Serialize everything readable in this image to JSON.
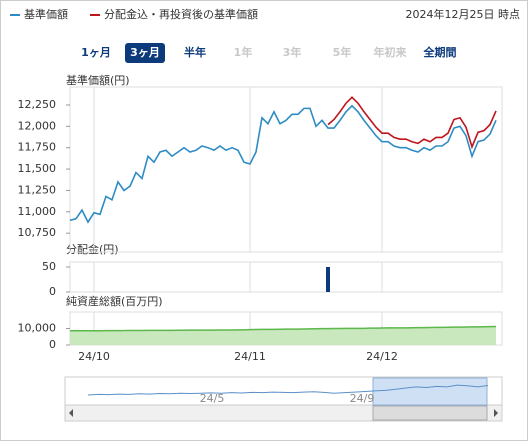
{
  "legend": {
    "items": [
      {
        "label": "基準価額",
        "color": "#2e8cc4"
      },
      {
        "label": "分配金込・再投資後の基準価額",
        "color": "#c0141c"
      }
    ]
  },
  "as_of": "2024年12月25日 時点",
  "buttons": [
    {
      "label": "1ヶ月",
      "state": "enabled"
    },
    {
      "label": "3ヶ月",
      "state": "selected"
    },
    {
      "label": "半年",
      "state": "enabled"
    },
    {
      "label": "1年",
      "state": "disabled"
    },
    {
      "label": "3年",
      "state": "disabled"
    },
    {
      "label": "5年",
      "state": "disabled"
    },
    {
      "label": "年初来",
      "state": "disabled"
    },
    {
      "label": "全期間",
      "state": "enabled"
    }
  ],
  "chart_data": {
    "type": "line",
    "y_label": "基準価額(円)",
    "categories": [
      null,
      null,
      null,
      null,
      "24/10",
      null,
      null,
      null,
      null,
      null,
      null,
      null,
      null,
      null,
      null,
      null,
      null,
      null,
      null,
      null,
      null,
      null,
      null,
      null,
      null,
      null,
      null,
      null,
      null,
      null,
      "24/11",
      null,
      null,
      null,
      null,
      null,
      null,
      null,
      null,
      null,
      null,
      null,
      null,
      null,
      null,
      null,
      null,
      null,
      null,
      null,
      null,
      null,
      "24/12",
      null,
      null,
      null,
      null,
      null,
      null,
      null,
      null,
      null,
      null,
      null,
      null,
      null,
      null,
      null,
      null,
      null,
      null,
      null
    ],
    "ylim": [
      10530,
      12460
    ],
    "yticks": [
      {
        "value": 10750,
        "label": "10,750"
      },
      {
        "value": 11000,
        "label": "11,000"
      },
      {
        "value": 11250,
        "label": "11,250"
      },
      {
        "value": 11500,
        "label": "11,500"
      },
      {
        "value": 11750,
        "label": "11,750"
      },
      {
        "value": 12000,
        "label": "12,000"
      },
      {
        "value": 12250,
        "label": "12,250"
      }
    ],
    "series": [
      {
        "name": "基準価額",
        "color": "#2e8cc4",
        "values": [
          10900,
          10920,
          11020,
          10880,
          10990,
          10970,
          11180,
          11140,
          11350,
          11250,
          11300,
          11460,
          11390,
          11650,
          11580,
          11700,
          11720,
          11650,
          11700,
          11750,
          11700,
          11720,
          11770,
          11750,
          11720,
          11770,
          11720,
          11750,
          11720,
          11580,
          11560,
          11700,
          12100,
          12030,
          12170,
          12030,
          12070,
          12140,
          12140,
          12210,
          12210,
          12000,
          12070,
          11980,
          11980,
          12070,
          12170,
          12240,
          12170,
          12070,
          11980,
          11890,
          11820,
          11820,
          11770,
          11750,
          11750,
          11720,
          11700,
          11750,
          11720,
          11770,
          11770,
          11820,
          11980,
          12000,
          11890,
          11650,
          11820,
          11840,
          11910,
          12070
        ]
      },
      {
        "name": "分配金込・再投資後の基準価額",
        "color": "#c0141c",
        "values": [
          null,
          null,
          null,
          null,
          null,
          null,
          null,
          null,
          null,
          null,
          null,
          null,
          null,
          null,
          null,
          null,
          null,
          null,
          null,
          null,
          null,
          null,
          null,
          null,
          null,
          null,
          null,
          null,
          null,
          null,
          null,
          null,
          null,
          null,
          null,
          null,
          null,
          null,
          null,
          null,
          null,
          null,
          null,
          12020,
          12080,
          12170,
          12270,
          12340,
          12270,
          12170,
          12080,
          11990,
          11920,
          11920,
          11870,
          11850,
          11850,
          11820,
          11800,
          11850,
          11820,
          11870,
          11870,
          11920,
          12080,
          12100,
          11990,
          11760,
          11930,
          11950,
          12020,
          12180
        ]
      }
    ],
    "dividend": {
      "label": "分配金(円)",
      "color": "#0d3a7a",
      "ylim": [
        0,
        60
      ],
      "yticks": [
        0,
        50
      ],
      "values": [
        null,
        null,
        null,
        null,
        null,
        null,
        null,
        null,
        null,
        null,
        null,
        null,
        null,
        null,
        null,
        null,
        null,
        null,
        null,
        null,
        null,
        null,
        null,
        null,
        null,
        null,
        null,
        null,
        null,
        null,
        null,
        null,
        null,
        null,
        null,
        null,
        null,
        null,
        null,
        null,
        null,
        null,
        null,
        50,
        null,
        null,
        null,
        null,
        null,
        null,
        null,
        null,
        null,
        null,
        null,
        null,
        null,
        null,
        null,
        null,
        null,
        null,
        null,
        null,
        null,
        null,
        null,
        null,
        null,
        null,
        null,
        null
      ]
    },
    "net_assets": {
      "label": "純資産総額(百万円)",
      "color": "#5cb84a",
      "fill": "#c9e8be",
      "ylim": [
        0,
        20000
      ],
      "yticks": [
        0,
        {
          "value": 10000,
          "label": "10,000"
        }
      ],
      "values": [
        8600,
        8600,
        8600,
        8650,
        8650,
        8650,
        8700,
        8700,
        8700,
        8750,
        8800,
        8800,
        8800,
        8850,
        8850,
        8900,
        8900,
        8900,
        8950,
        8950,
        9000,
        9000,
        9000,
        9050,
        9050,
        9100,
        9100,
        9100,
        9150,
        9150,
        9300,
        9400,
        9450,
        9500,
        9500,
        9550,
        9600,
        9600,
        9650,
        9700,
        9800,
        9850,
        9900,
        9950,
        10000,
        10000,
        10050,
        10050,
        10100,
        10100,
        10200,
        10250,
        10300,
        10350,
        10350,
        10400,
        10400,
        10450,
        10500,
        10500,
        10600,
        10650,
        10700,
        10750,
        10800,
        10850,
        10900,
        10950,
        11000,
        11050,
        11100,
        11200
      ]
    },
    "navigator": {
      "labels": [
        "24/5",
        "24/9"
      ],
      "color": "#5b8fc9",
      "ylim": [
        9000,
        13000
      ],
      "values": [
        10400,
        10500,
        10450,
        10550,
        10500,
        10600,
        10550,
        10650,
        10600,
        10700,
        10650,
        10700,
        10750,
        10700,
        10800,
        10750,
        10850,
        10800,
        10900,
        10850,
        10800,
        10900,
        10950,
        10850,
        10700,
        10800,
        10900,
        11000,
        11100,
        11200,
        11400,
        11600,
        11800,
        11700,
        11900,
        11800,
        12100,
        12000,
        11800,
        12050
      ]
    }
  }
}
